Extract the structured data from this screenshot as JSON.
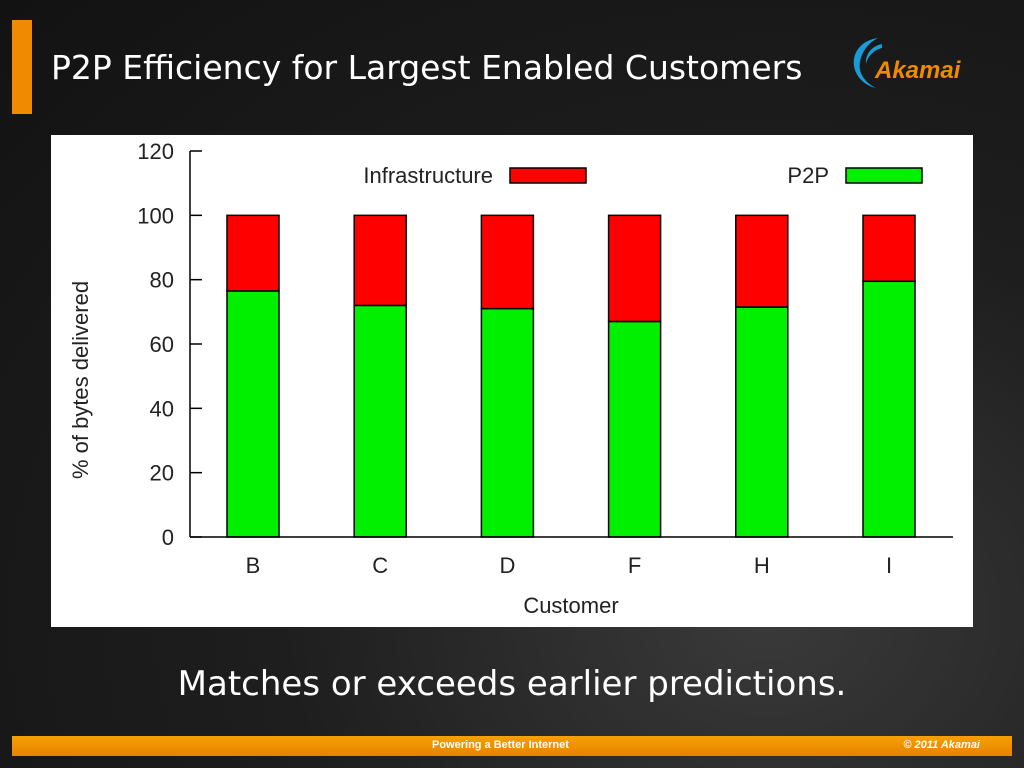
{
  "slide": {
    "title": "P2P Efficiency for Largest Enabled Customers",
    "caption": "Matches or exceeds earlier predictions.",
    "logo_text": "Akamai",
    "footer_center": "Powering a Better Internet",
    "footer_right": "© 2011 Akamai",
    "accent_color": "#f08a00"
  },
  "chart_data": {
    "type": "bar",
    "stacked": true,
    "categories": [
      "B",
      "C",
      "D",
      "F",
      "H",
      "I"
    ],
    "series": [
      {
        "name": "P2P",
        "color": "#00f000",
        "values": [
          76.5,
          72,
          71,
          67,
          71.5,
          79.5
        ]
      },
      {
        "name": "Infrastructure",
        "color": "#ff0000",
        "values": [
          23.5,
          28,
          29,
          33,
          28.5,
          20.5
        ]
      }
    ],
    "xlabel": "Customer",
    "ylabel": "% of bytes delivered",
    "ylim": [
      0,
      120
    ],
    "yticks": [
      "0",
      "20",
      "40",
      "60",
      "80",
      "100",
      "120"
    ],
    "legend_position": "top",
    "grid": false
  }
}
